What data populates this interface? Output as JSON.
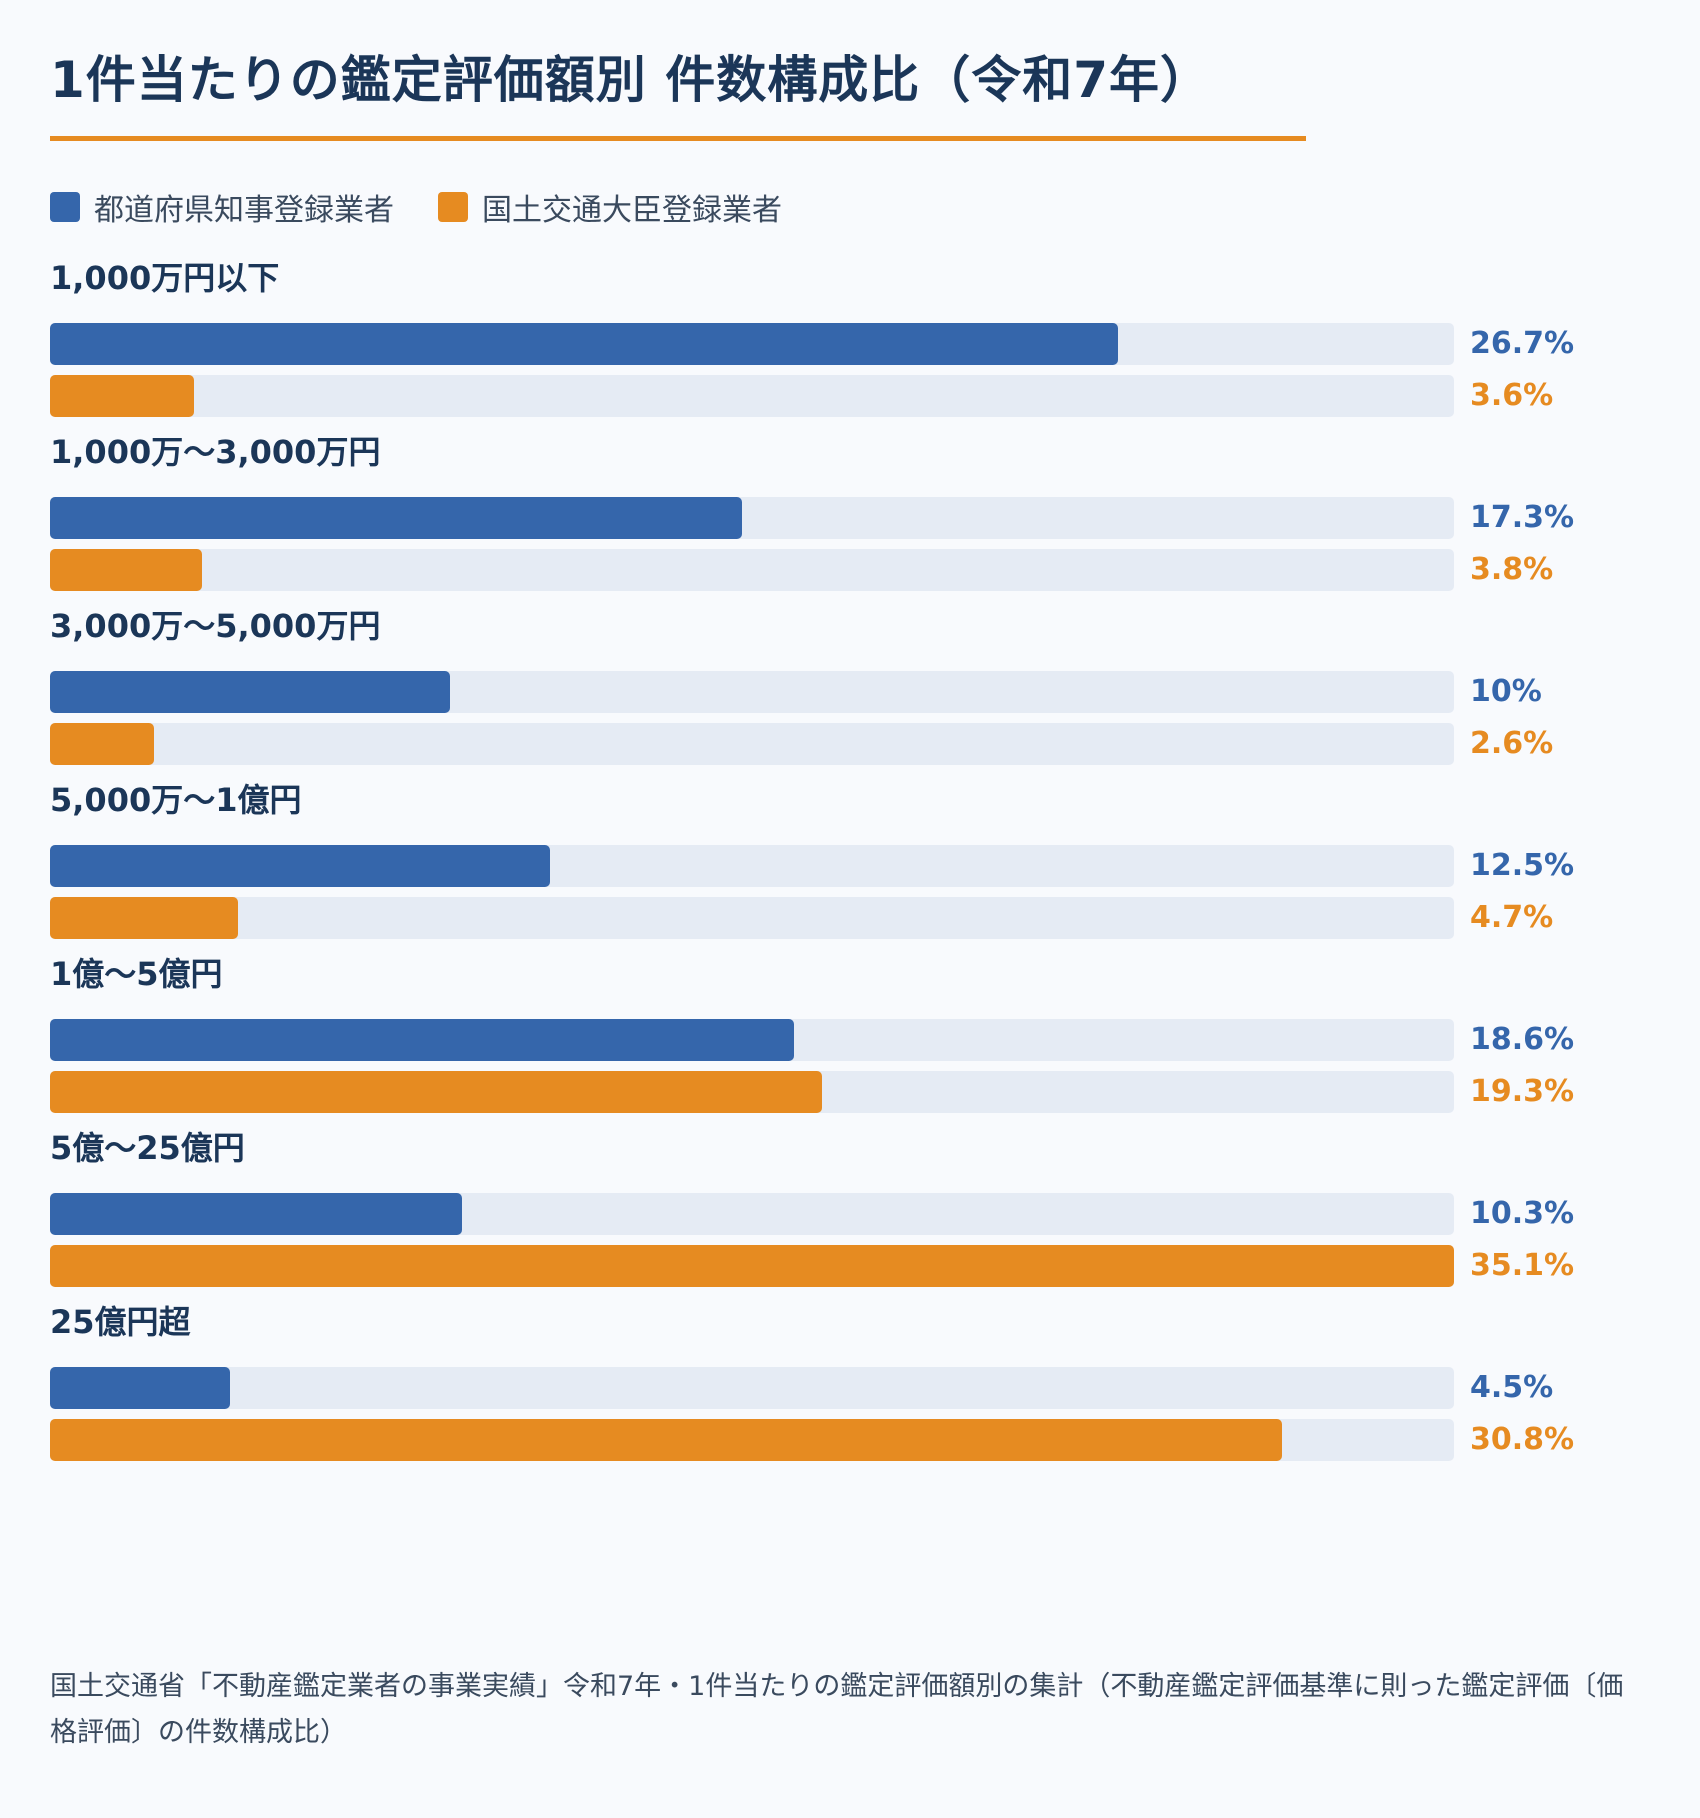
{
  "title": "1件当たりの鑑定評価額別 件数構成比（令和7年）",
  "footnote": "国土交通省「不動産鑑定業者の事業実績」令和7年・1件当たりの鑑定評価額別の集計（不動産鑑定評価基準に則った鑑定評価〔価格評価〕の件数構成比）",
  "colors": {
    "prefectural": "#3566ab",
    "national": "#e68b21",
    "track": "#e5ebf4",
    "accent_rule": "#e68b21"
  },
  "chart_data": {
    "type": "bar",
    "orientation": "horizontal",
    "unit": "%",
    "xlim": [
      0,
      35.1
    ],
    "categories": [
      "1,000万円以下",
      "1,000万～3,000万円",
      "3,000万～5,000万円",
      "5,000万～1億円",
      "1億～5億円",
      "5億～25億円",
      "25億円超"
    ],
    "series": [
      {
        "name": "都道府県知事登録業者",
        "color": "#3566ab",
        "values": [
          26.7,
          17.3,
          10,
          12.5,
          18.6,
          10.3,
          4.5
        ],
        "labels": [
          "26.7%",
          "17.3%",
          "10%",
          "12.5%",
          "18.6%",
          "10.3%",
          "4.5%"
        ]
      },
      {
        "name": "国土交通大臣登録業者",
        "color": "#e68b21",
        "values": [
          3.6,
          3.8,
          2.6,
          4.7,
          19.3,
          35.1,
          30.8
        ],
        "labels": [
          "3.6%",
          "3.8%",
          "2.6%",
          "4.7%",
          "19.3%",
          "35.1%",
          "30.8%"
        ]
      }
    ],
    "legend_position": "top-left",
    "grid": false
  }
}
